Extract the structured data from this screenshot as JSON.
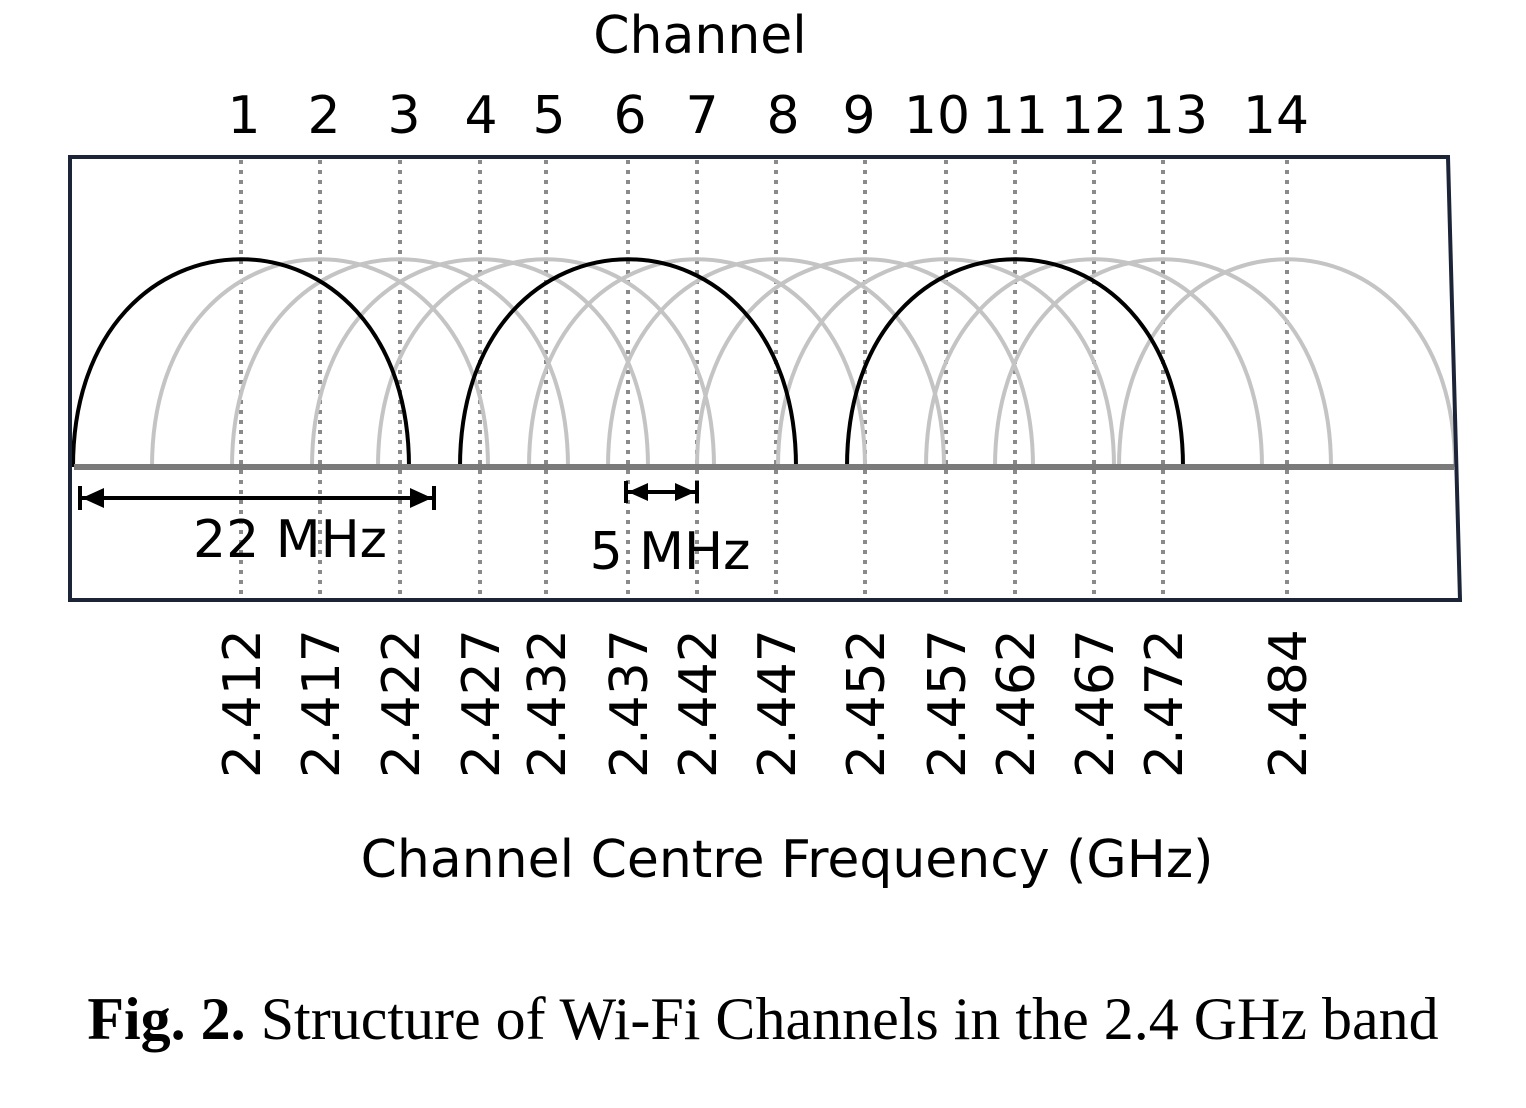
{
  "diagram": {
    "top_title": "Channel",
    "bottom_title": "Channel Centre Frequency (GHz)",
    "channels": [
      {
        "label": "1",
        "freq": "2.412",
        "highlight": true
      },
      {
        "label": "2",
        "freq": "2.417",
        "highlight": false
      },
      {
        "label": "3",
        "freq": "2.422",
        "highlight": false
      },
      {
        "label": "4",
        "freq": "2.427",
        "highlight": false
      },
      {
        "label": "5",
        "freq": "2.432",
        "highlight": false
      },
      {
        "label": "6",
        "freq": "2.437",
        "highlight": true
      },
      {
        "label": "7",
        "freq": "2.442",
        "highlight": false
      },
      {
        "label": "8",
        "freq": "2.447",
        "highlight": false
      },
      {
        "label": "9",
        "freq": "2.452",
        "highlight": false
      },
      {
        "label": "10",
        "freq": "2.457",
        "highlight": false
      },
      {
        "label": "11",
        "freq": "2.462",
        "highlight": true
      },
      {
        "label": "12",
        "freq": "2.467",
        "highlight": false
      },
      {
        "label": "13",
        "freq": "2.472",
        "highlight": false
      },
      {
        "label": "14",
        "freq": "2.484",
        "highlight": false
      }
    ],
    "bandwidth_label": "22 MHz",
    "spacing_label": "5 MHz",
    "colors": {
      "frame": "#1c2438",
      "baseline": "#7a7a7a",
      "highlight_curve": "#000000",
      "other_curve": "#c4c4c4",
      "grid_dots": "#8a8a8a"
    }
  },
  "caption": {
    "label": "Fig. 2.",
    "text": "Structure of Wi-Fi Channels in the 2.4 GHz band"
  }
}
